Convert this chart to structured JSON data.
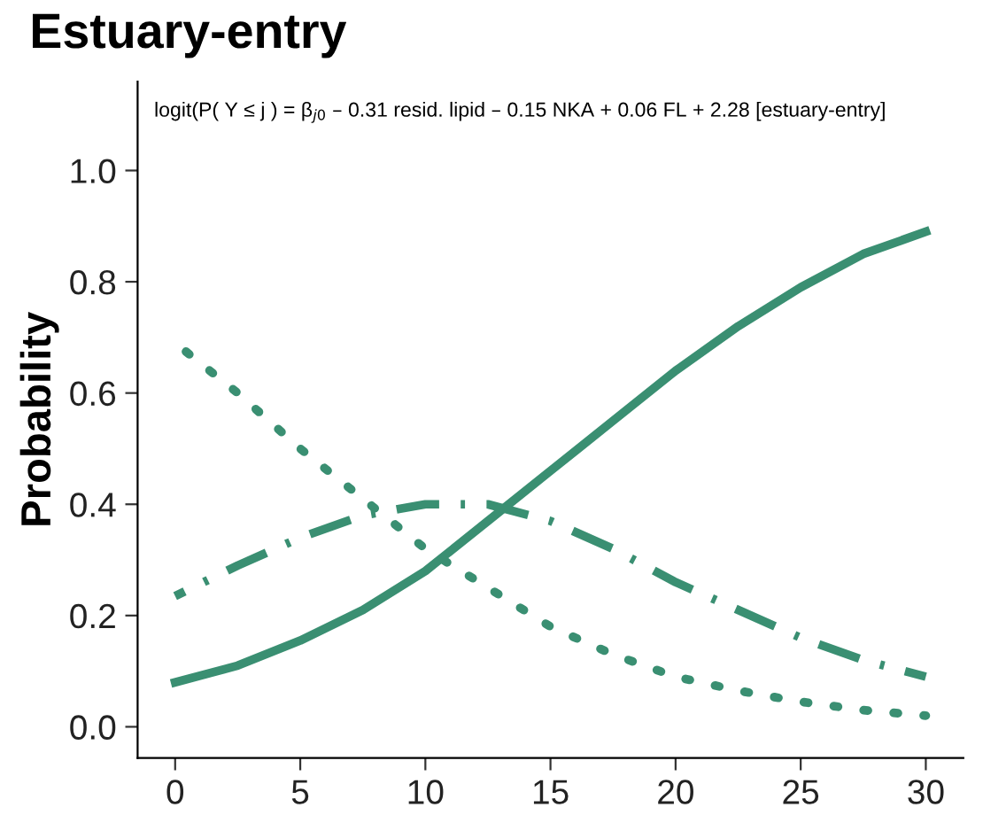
{
  "chart_data": {
    "type": "line",
    "title": "Estuary-entry",
    "ylabel": "Probability",
    "annotations": [
      "logit(P( Y ≤ j ) = β$_{j0}$ – 0.31 resid. lipid – 0.15 NKA + 0.06 FL + 2.28 [estuary-entry]"
    ],
    "x": [
      0,
      2.5,
      5,
      7.5,
      10,
      12.5,
      15,
      17.5,
      20,
      22.5,
      25,
      27.5,
      30
    ],
    "series": [
      {
        "color": "#3a8f72",
        "line_style": "solid",
        "values": [
          0.08,
          0.11,
          0.155,
          0.21,
          0.28,
          0.37,
          0.46,
          0.55,
          0.64,
          0.72,
          0.79,
          0.85,
          0.89
        ]
      },
      {
        "color": "#3a8f72",
        "line_style": "dotted",
        "values": [
          0.69,
          0.6,
          0.5,
          0.41,
          0.32,
          0.25,
          0.18,
          0.13,
          0.09,
          0.065,
          0.045,
          0.03,
          0.02
        ]
      },
      {
        "color": "#3a8f72",
        "line_style": "dashdot",
        "values": [
          0.235,
          0.29,
          0.34,
          0.38,
          0.4,
          0.4,
          0.37,
          0.32,
          0.26,
          0.21,
          0.16,
          0.12,
          0.09
        ]
      }
    ],
    "xlim": [
      -1.5,
      31.5
    ],
    "ylim": [
      -0.056,
      1.16
    ],
    "xticks": [
      0,
      5,
      10,
      15,
      20,
      25,
      30
    ],
    "yticks": [
      {
        "value": 0,
        "label": "0.0"
      },
      {
        "value": 0.2,
        "label": "0.2"
      },
      {
        "value": 0.4,
        "label": "0.4"
      },
      {
        "value": 0.6,
        "label": "0.6"
      },
      {
        "value": 0.8,
        "label": "0.8"
      },
      {
        "value": 1,
        "label": "1.0"
      }
    ],
    "grid": false,
    "marker": "none"
  }
}
